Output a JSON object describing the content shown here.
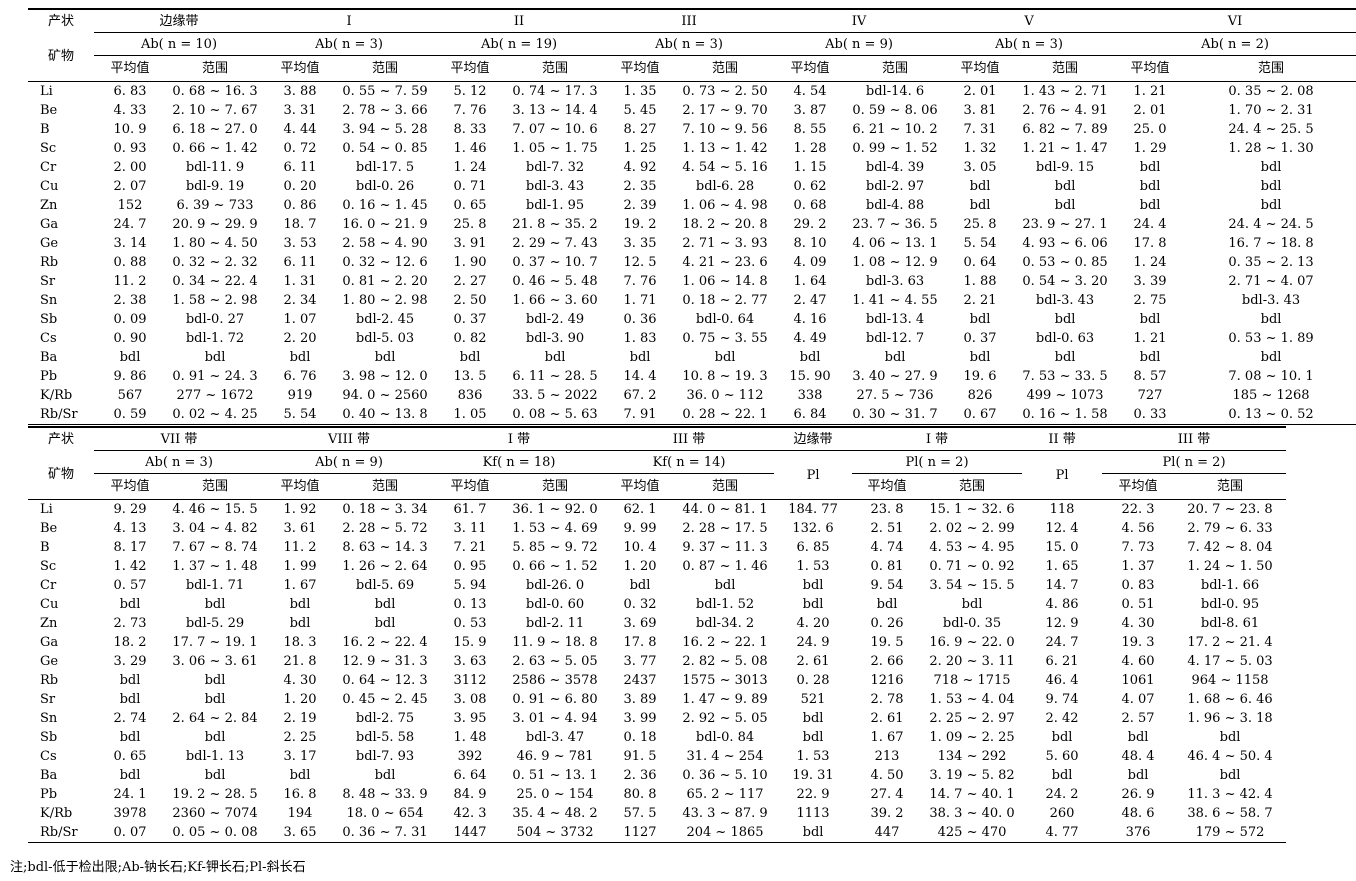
{
  "top": {
    "corner_top": "产状",
    "corner_bottom": "矿物",
    "groups": [
      {
        "zone": "边缘带",
        "mineral": "Ab( n = 10)"
      },
      {
        "zone": "I",
        "mineral": "Ab( n = 3)"
      },
      {
        "zone": "II",
        "mineral": "Ab( n = 19)"
      },
      {
        "zone": "III",
        "mineral": "Ab( n = 3)"
      },
      {
        "zone": "IV",
        "mineral": "Ab( n = 9)"
      },
      {
        "zone": "V",
        "mineral": "Ab( n = 3)"
      },
      {
        "zone": "VI",
        "mineral": "Ab( n = 2)"
      }
    ],
    "col_mean": "平均值",
    "col_range": "范围",
    "rows": [
      [
        "Li",
        "6. 83",
        "0. 68 ~ 16. 3",
        "3. 88",
        "0. 55 ~ 7. 59",
        "5. 12",
        "0. 74 ~ 17. 3",
        "1. 35",
        "0. 73 ~ 2. 50",
        "4. 54",
        "bdl-14. 6",
        "2. 01",
        "1. 43 ~ 2. 71",
        "1. 21",
        "0. 35 ~ 2. 08"
      ],
      [
        "Be",
        "4. 33",
        "2. 10 ~ 7. 67",
        "3. 31",
        "2. 78 ~ 3. 66",
        "7. 76",
        "3. 13 ~ 14. 4",
        "5. 45",
        "2. 17 ~ 9. 70",
        "3. 87",
        "0. 59 ~ 8. 06",
        "3. 81",
        "2. 76 ~ 4. 91",
        "2. 01",
        "1. 70 ~ 2. 31"
      ],
      [
        "B",
        "10. 9",
        "6. 18 ~ 27. 0",
        "4. 44",
        "3. 94 ~ 5. 28",
        "8. 33",
        "7. 07 ~ 10. 6",
        "8. 27",
        "7. 10 ~ 9. 56",
        "8. 55",
        "6. 21 ~ 10. 2",
        "7. 31",
        "6. 82 ~ 7. 89",
        "25. 0",
        "24. 4 ~ 25. 5"
      ],
      [
        "Sc",
        "0. 93",
        "0. 66 ~ 1. 42",
        "0. 72",
        "0. 54 ~ 0. 85",
        "1. 46",
        "1. 05 ~ 1. 75",
        "1. 25",
        "1. 13 ~ 1. 42",
        "1. 28",
        "0. 99 ~ 1. 52",
        "1. 32",
        "1. 21 ~ 1. 47",
        "1. 29",
        "1. 28 ~ 1. 30"
      ],
      [
        "Cr",
        "2. 00",
        "bdl-11. 9",
        "6. 11",
        "bdl-17. 5",
        "1. 24",
        "bdl-7. 32",
        "4. 92",
        "4. 54 ~ 5. 16",
        "1. 15",
        "bdl-4. 39",
        "3. 05",
        "bdl-9. 15",
        "bdl",
        "bdl"
      ],
      [
        "Cu",
        "2. 07",
        "bdl-9. 19",
        "0. 20",
        "bdl-0. 26",
        "0. 71",
        "bdl-3. 43",
        "2. 35",
        "bdl-6. 28",
        "0. 62",
        "bdl-2. 97",
        "bdl",
        "bdl",
        "bdl",
        "bdl"
      ],
      [
        "Zn",
        "152",
        "6. 39 ~ 733",
        "0. 86",
        "0. 16 ~ 1. 45",
        "0. 65",
        "bdl-1. 95",
        "2. 39",
        "1. 06 ~ 4. 98",
        "0. 68",
        "bdl-4. 88",
        "bdl",
        "bdl",
        "bdl",
        "bdl"
      ],
      [
        "Ga",
        "24. 7",
        "20. 9 ~ 29. 9",
        "18. 7",
        "16. 0 ~ 21. 9",
        "25. 8",
        "21. 8 ~ 35. 2",
        "19. 2",
        "18. 2 ~ 20. 8",
        "29. 2",
        "23. 7 ~ 36. 5",
        "25. 8",
        "23. 9 ~ 27. 1",
        "24. 4",
        "24. 4 ~ 24. 5"
      ],
      [
        "Ge",
        "3. 14",
        "1. 80 ~ 4. 50",
        "3. 53",
        "2. 58 ~ 4. 90",
        "3. 91",
        "2. 29 ~ 7. 43",
        "3. 35",
        "2. 71 ~ 3. 93",
        "8. 10",
        "4. 06 ~ 13. 1",
        "5. 54",
        "4. 93 ~ 6. 06",
        "17. 8",
        "16. 7 ~ 18. 8"
      ],
      [
        "Rb",
        "0. 88",
        "0. 32 ~ 2. 32",
        "6. 11",
        "0. 32 ~ 12. 6",
        "1. 90",
        "0. 37 ~ 10. 7",
        "12. 5",
        "4. 21 ~ 23. 6",
        "4. 09",
        "1. 08 ~ 12. 9",
        "0. 64",
        "0. 53 ~ 0. 85",
        "1. 24",
        "0. 35 ~ 2. 13"
      ],
      [
        "Sr",
        "11. 2",
        "0. 34 ~ 22. 4",
        "1. 31",
        "0. 81 ~ 2. 20",
        "2. 27",
        "0. 46 ~ 5. 48",
        "7. 76",
        "1. 06 ~ 14. 8",
        "1. 64",
        "bdl-3. 63",
        "1. 88",
        "0. 54 ~ 3. 20",
        "3. 39",
        "2. 71 ~ 4. 07"
      ],
      [
        "Sn",
        "2. 38",
        "1. 58 ~ 2. 98",
        "2. 34",
        "1. 80 ~ 2. 98",
        "2. 50",
        "1. 66 ~ 3. 60",
        "1. 71",
        "0. 18 ~ 2. 77",
        "2. 47",
        "1. 41 ~ 4. 55",
        "2. 21",
        "bdl-3. 43",
        "2. 75",
        "bdl-3. 43"
      ],
      [
        "Sb",
        "0. 09",
        "bdl-0. 27",
        "1. 07",
        "bdl-2. 45",
        "0. 37",
        "bdl-2. 49",
        "0. 36",
        "bdl-0. 64",
        "4. 16",
        "bdl-13. 4",
        "bdl",
        "bdl",
        "bdl",
        "bdl"
      ],
      [
        "Cs",
        "0. 90",
        "bdl-1. 72",
        "2. 20",
        "bdl-5. 03",
        "0. 82",
        "bdl-3. 90",
        "1. 83",
        "0. 75 ~ 3. 55",
        "4. 49",
        "bdl-12. 7",
        "0. 37",
        "bdl-0. 63",
        "1. 21",
        "0. 53 ~ 1. 89"
      ],
      [
        "Ba",
        "bdl",
        "bdl",
        "bdl",
        "bdl",
        "bdl",
        "bdl",
        "bdl",
        "bdl",
        "bdl",
        "bdl",
        "bdl",
        "bdl",
        "bdl",
        "bdl"
      ],
      [
        "Pb",
        "9. 86",
        "0. 91 ~ 24. 3",
        "6. 76",
        "3. 98 ~ 12. 0",
        "13. 5",
        "6. 11 ~ 28. 5",
        "14. 4",
        "10. 8 ~ 19. 3",
        "15. 90",
        "3. 40 ~ 27. 9",
        "19. 6",
        "7. 53 ~ 33. 5",
        "8. 57",
        "7. 08 ~ 10. 1"
      ],
      [
        "K/Rb",
        "567",
        "277 ~ 1672",
        "919",
        "94. 0 ~ 2560",
        "836",
        "33. 5 ~ 2022",
        "67. 2",
        "36. 0 ~ 112",
        "338",
        "27. 5 ~ 736",
        "826",
        "499 ~ 1073",
        "727",
        "185 ~ 1268"
      ],
      [
        "Rb/Sr",
        "0. 59",
        "0. 02 ~ 4. 25",
        "5. 54",
        "0. 40 ~ 13. 8",
        "1. 05",
        "0. 08 ~ 5. 63",
        "7. 91",
        "0. 28 ~ 22. 1",
        "6. 84",
        "0. 30 ~ 31. 7",
        "0. 67",
        "0. 16 ~ 1. 58",
        "0. 33",
        "0. 13 ~ 0. 52"
      ]
    ]
  },
  "bottom": {
    "corner_top": "产状",
    "corner_bottom": "矿物",
    "zones": [
      "VII 带",
      "VIII 带",
      "I 带",
      "III 带",
      "边缘带",
      "I 带",
      "II 带",
      "III 带"
    ],
    "minerals": [
      "Ab( n = 3)",
      "Ab( n = 9)",
      "Kf( n = 18)",
      "Kf( n = 14)",
      "Pl",
      "Pl( n = 2)",
      "Pl",
      "Pl( n = 2)"
    ],
    "col_mean": "平均值",
    "col_range": "范围",
    "rows": [
      [
        "Li",
        "9. 29",
        "4. 46 ~ 15. 5",
        "1. 92",
        "0. 18 ~ 3. 34",
        "61. 7",
        "36. 1 ~ 92. 0",
        "62. 1",
        "44. 0 ~ 81. 1",
        "184. 77",
        "23. 8",
        "15. 1 ~ 32. 6",
        "118",
        "22. 3",
        "20. 7 ~ 23. 8"
      ],
      [
        "Be",
        "4. 13",
        "3. 04 ~ 4. 82",
        "3. 61",
        "2. 28 ~ 5. 72",
        "3. 11",
        "1. 53 ~ 4. 69",
        "9. 99",
        "2. 28 ~ 17. 5",
        "132. 6",
        "2. 51",
        "2. 02 ~ 2. 99",
        "12. 4",
        "4. 56",
        "2. 79 ~ 6. 33"
      ],
      [
        "B",
        "8. 17",
        "7. 67 ~ 8. 74",
        "11. 2",
        "8. 63 ~ 14. 3",
        "7. 21",
        "5. 85 ~ 9. 72",
        "10. 4",
        "9. 37 ~ 11. 3",
        "6. 85",
        "4. 74",
        "4. 53 ~ 4. 95",
        "15. 0",
        "7. 73",
        "7. 42 ~ 8. 04"
      ],
      [
        "Sc",
        "1. 42",
        "1. 37 ~ 1. 48",
        "1. 99",
        "1. 26 ~ 2. 64",
        "0. 95",
        "0. 66 ~ 1. 52",
        "1. 20",
        "0. 87 ~ 1. 46",
        "1. 53",
        "0. 81",
        "0. 71 ~ 0. 92",
        "1. 65",
        "1. 37",
        "1. 24 ~ 1. 50"
      ],
      [
        "Cr",
        "0. 57",
        "bdl-1. 71",
        "1. 67",
        "bdl-5. 69",
        "5. 94",
        "bdl-26. 0",
        "bdl",
        "bdl",
        "bdl",
        "9. 54",
        "3. 54 ~ 15. 5",
        "14. 7",
        "0. 83",
        "bdl-1. 66"
      ],
      [
        "Cu",
        "bdl",
        "bdl",
        "bdl",
        "bdl",
        "0. 13",
        "bdl-0. 60",
        "0. 32",
        "bdl-1. 52",
        "bdl",
        "bdl",
        "bdl",
        "4. 86",
        "0. 51",
        "bdl-0. 95"
      ],
      [
        "Zn",
        "2. 73",
        "bdl-5. 29",
        "bdl",
        "bdl",
        "0. 53",
        "bdl-2. 11",
        "3. 69",
        "bdl-34. 2",
        "4. 20",
        "0. 26",
        "bdl-0. 35",
        "12. 9",
        "4. 30",
        "bdl-8. 61"
      ],
      [
        "Ga",
        "18. 2",
        "17. 7 ~ 19. 1",
        "18. 3",
        "16. 2 ~ 22. 4",
        "15. 9",
        "11. 9 ~ 18. 8",
        "17. 8",
        "16. 2 ~ 22. 1",
        "24. 9",
        "19. 5",
        "16. 9 ~ 22. 0",
        "24. 7",
        "19. 3",
        "17. 2 ~ 21. 4"
      ],
      [
        "Ge",
        "3. 29",
        "3. 06 ~ 3. 61",
        "21. 8",
        "12. 9 ~ 31. 3",
        "3. 63",
        "2. 63 ~ 5. 05",
        "3. 77",
        "2. 82 ~ 5. 08",
        "2. 61",
        "2. 66",
        "2. 20 ~ 3. 11",
        "6. 21",
        "4. 60",
        "4. 17 ~ 5. 03"
      ],
      [
        "Rb",
        "bdl",
        "bdl",
        "4. 30",
        "0. 64 ~ 12. 3",
        "3112",
        "2586 ~ 3578",
        "2437",
        "1575 ~ 3013",
        "0. 28",
        "1216",
        "718 ~ 1715",
        "46. 4",
        "1061",
        "964 ~ 1158"
      ],
      [
        "Sr",
        "bdl",
        "bdl",
        "1. 20",
        "0. 45 ~ 2. 45",
        "3. 08",
        "0. 91 ~ 6. 80",
        "3. 89",
        "1. 47 ~ 9. 89",
        "521",
        "2. 78",
        "1. 53 ~ 4. 04",
        "9. 74",
        "4. 07",
        "1. 68 ~ 6. 46"
      ],
      [
        "Sn",
        "2. 74",
        "2. 64 ~ 2. 84",
        "2. 19",
        "bdl-2. 75",
        "3. 95",
        "3. 01 ~ 4. 94",
        "3. 99",
        "2. 92 ~ 5. 05",
        "bdl",
        "2. 61",
        "2. 25 ~ 2. 97",
        "2. 42",
        "2. 57",
        "1. 96 ~ 3. 18"
      ],
      [
        "Sb",
        "bdl",
        "bdl",
        "2. 25",
        "bdl-5. 58",
        "1. 48",
        "bdl-3. 47",
        "0. 18",
        "bdl-0. 84",
        "bdl",
        "1. 67",
        "1. 09 ~ 2. 25",
        "bdl",
        "bdl",
        "bdl"
      ],
      [
        "Cs",
        "0. 65",
        "bdl-1. 13",
        "3. 17",
        "bdl-7. 93",
        "392",
        "46. 9 ~ 781",
        "91. 5",
        "31. 4 ~ 254",
        "1. 53",
        "213",
        "134 ~ 292",
        "5. 60",
        "48. 4",
        "46. 4 ~ 50. 4"
      ],
      [
        "Ba",
        "bdl",
        "bdl",
        "bdl",
        "bdl",
        "6. 64",
        "0. 51 ~ 13. 1",
        "2. 36",
        "0. 36 ~ 5. 10",
        "19. 31",
        "4. 50",
        "3. 19 ~ 5. 82",
        "bdl",
        "bdl",
        "bdl"
      ],
      [
        "Pb",
        "24. 1",
        "19. 2 ~ 28. 5",
        "16. 8",
        "8. 48 ~ 33. 9",
        "84. 9",
        "25. 0 ~ 154",
        "80. 8",
        "65. 2 ~ 117",
        "22. 9",
        "27. 4",
        "14. 7 ~ 40. 1",
        "24. 2",
        "26. 9",
        "11. 3 ~ 42. 4"
      ],
      [
        "K/Rb",
        "3978",
        "2360 ~ 7074",
        "194",
        "18. 0 ~ 654",
        "42. 3",
        "35. 4 ~ 48. 2",
        "57. 5",
        "43. 3 ~ 87. 9",
        "1113",
        "39. 2",
        "38. 3 ~ 40. 0",
        "260",
        "48. 6",
        "38. 6 ~ 58. 7"
      ],
      [
        "Rb/Sr",
        "0. 07",
        "0. 05 ~ 0. 08",
        "3. 65",
        "0. 36 ~ 7. 31",
        "1447",
        "504 ~ 3732",
        "1127",
        "204 ~ 1865",
        "bdl",
        "447",
        "425 ~ 470",
        "4. 77",
        "376",
        "179 ~ 572"
      ]
    ]
  },
  "footnote": "注;bdl-低于检出限;Ab-钠长石;Kf-钾长石;Pl-斜长石"
}
